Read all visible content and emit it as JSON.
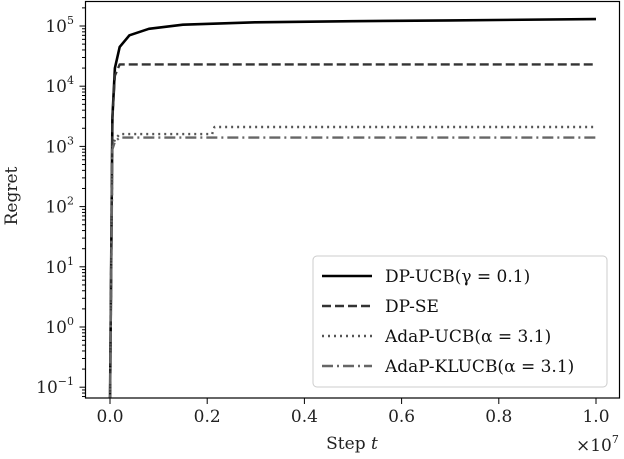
{
  "chart_data": {
    "type": "line",
    "title": "",
    "xlabel": "Step t",
    "ylabel": "Regret",
    "x_scale_note": "×10^7",
    "x_offset_label": "×10",
    "x_offset_exponent": "7",
    "yscale": "log",
    "xlim": [
      -0.05,
      1.05
    ],
    "ylim": [
      0.065,
      250000
    ],
    "grid": false,
    "legend_position": "lower right",
    "x_ticks": [
      "0.0",
      "0.2",
      "0.4",
      "0.6",
      "0.8",
      "1.0"
    ],
    "y_ticks": [
      {
        "base": "10",
        "exp": "5"
      },
      {
        "base": "10",
        "exp": "4"
      },
      {
        "base": "10",
        "exp": "3"
      },
      {
        "base": "10",
        "exp": "2"
      },
      {
        "base": "10",
        "exp": "1"
      },
      {
        "base": "10",
        "exp": "0"
      },
      {
        "base": "10",
        "exp": "−1"
      }
    ],
    "series": [
      {
        "name": "DP-UCB(γ = 0.1)",
        "style": "solid",
        "color": "#000000",
        "x": [
          0.0,
          0.005,
          0.01,
          0.02,
          0.04,
          0.08,
          0.15,
          0.3,
          0.5,
          0.7,
          1.0
        ],
        "values": [
          0.05,
          3000,
          20000,
          45000,
          70000,
          90000,
          105000,
          115000,
          120000,
          124000,
          130000
        ]
      },
      {
        "name": "DP-SE",
        "style": "dashed",
        "color": "#333333",
        "x": [
          0.0,
          0.005,
          0.01,
          0.02,
          1.0
        ],
        "values": [
          0.05,
          3000,
          15000,
          23000,
          23000
        ]
      },
      {
        "name": "AdaP-UCB(α = 3.1)",
        "style": "dotted",
        "color": "#555555",
        "x": [
          0.0,
          0.005,
          0.01,
          0.02,
          0.21,
          0.215,
          1.0
        ],
        "values": [
          0.05,
          1000,
          1300,
          1600,
          1600,
          2100,
          2100
        ]
      },
      {
        "name": "AdaP-KLUCB(α = 3.1)",
        "style": "dashdot",
        "color": "#666666",
        "x": [
          0.0,
          0.005,
          0.01,
          0.02,
          1.0
        ],
        "values": [
          0.05,
          900,
          1200,
          1400,
          1400
        ]
      }
    ]
  },
  "legend": {
    "items": [
      {
        "label": "DP-UCB(γ = 0.1)"
      },
      {
        "label": "DP-SE"
      },
      {
        "label": "AdaP-UCB(α = 3.1)"
      },
      {
        "label": "AdaP-KLUCB(α = 3.1)"
      }
    ]
  }
}
